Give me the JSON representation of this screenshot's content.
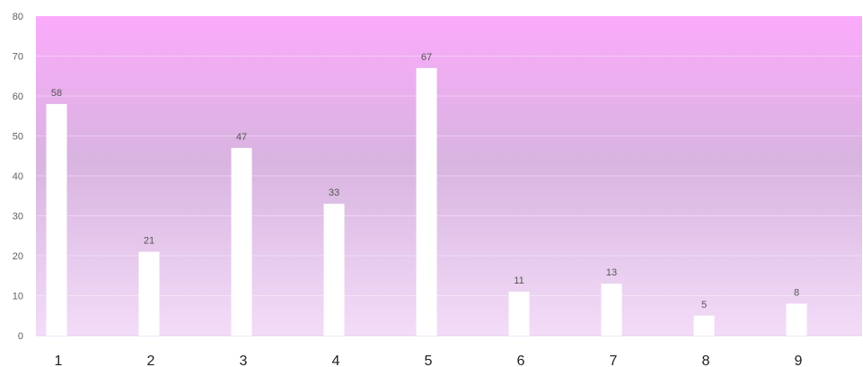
{
  "chart_data": {
    "type": "bar",
    "categories": [
      "1",
      "2",
      "3",
      "4",
      "5",
      "6",
      "7",
      "8",
      "9"
    ],
    "values": [
      58,
      21,
      47,
      33,
      67,
      11,
      13,
      5,
      8
    ],
    "ylim": [
      0,
      80
    ],
    "yticks": [
      "0",
      "10",
      "20",
      "30",
      "40",
      "50",
      "60",
      "70",
      "80"
    ],
    "data_labels": [
      "58",
      "21",
      "47",
      "33",
      "67",
      "11",
      "13",
      "5",
      "8"
    ],
    "title": "",
    "xlabel": "",
    "ylabel": "",
    "grid": true,
    "legend": "none",
    "colors": {
      "bar": "#ffffff",
      "plot_gradient_top": "#fbaafb",
      "plot_gradient_mid": "#d8b4e0",
      "plot_gradient_bottom": "#f3dcf8"
    }
  }
}
